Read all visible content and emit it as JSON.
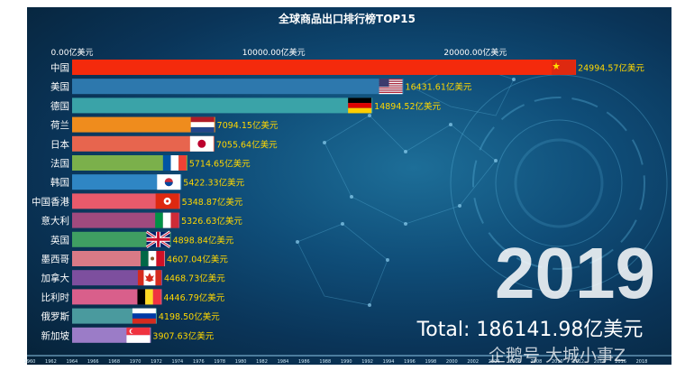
{
  "chart_data": {
    "type": "bar",
    "title": "全球商品出口排行榜TOP15",
    "year": "2019",
    "total_label": "Total: 186141.98亿美元",
    "watermark": "企鹅号 大城小事Z",
    "xlim": [
      0,
      27000
    ],
    "x_ticks": [
      {
        "value": 0,
        "label": "0.00亿美元"
      },
      {
        "value": 10000,
        "label": "10000.00亿美元"
      },
      {
        "value": 20000,
        "label": "20000.00亿美元"
      }
    ],
    "timeline": [
      "1960",
      "1962",
      "1964",
      "1966",
      "1968",
      "1970",
      "1972",
      "1974",
      "1976",
      "1978",
      "1980",
      "1982",
      "1984",
      "1986",
      "1988",
      "1990",
      "1992",
      "1994",
      "1996",
      "1998",
      "2000",
      "2002",
      "2004",
      "2006",
      "2008",
      "2010",
      "2012",
      "2014",
      "2016",
      "2018"
    ],
    "categories": [
      "中国",
      "美国",
      "德国",
      "荷兰",
      "日本",
      "法国",
      "韩国",
      "中国香港",
      "意大利",
      "英国",
      "墨西哥",
      "加拿大",
      "比利时",
      "俄罗斯",
      "新加坡"
    ],
    "values": [
      24994.57,
      16431.61,
      14894.52,
      7094.15,
      7055.64,
      5714.65,
      5422.33,
      5348.87,
      5326.63,
      4898.84,
      4607.04,
      4468.73,
      4446.79,
      4198.5,
      3907.63
    ],
    "value_labels": [
      "24994.57亿美元",
      "16431.61亿美元",
      "14894.52亿美元",
      "7094.15亿美元",
      "7055.64亿美元",
      "5714.65亿美元",
      "5422.33亿美元",
      "5348.87亿美元",
      "5326.63亿美元",
      "4898.84亿美元",
      "4607.04亿美元",
      "4468.73亿美元",
      "4446.79亿美元",
      "4198.50亿美元",
      "3907.63亿美元"
    ],
    "colors": [
      "#f42a0c",
      "#2d78ad",
      "#3aa3a8",
      "#ef8c1d",
      "#e7654e",
      "#7bb04b",
      "#2f86c4",
      "#e85a6b",
      "#a04a7e",
      "#3f9e62",
      "#d97a86",
      "#7d4f9e",
      "#d95f8b",
      "#4a9a9e",
      "#9b7cc7"
    ],
    "flags": [
      "china-flag",
      "usa-flag",
      "germany-flag",
      "netherlands-flag",
      "japan-flag",
      "france-flag",
      "korea-flag",
      "hongkong-flag",
      "italy-flag",
      "uk-flag",
      "mexico-flag",
      "canada-flag",
      "belgium-flag",
      "russia-flag",
      "singapore-flag"
    ]
  }
}
